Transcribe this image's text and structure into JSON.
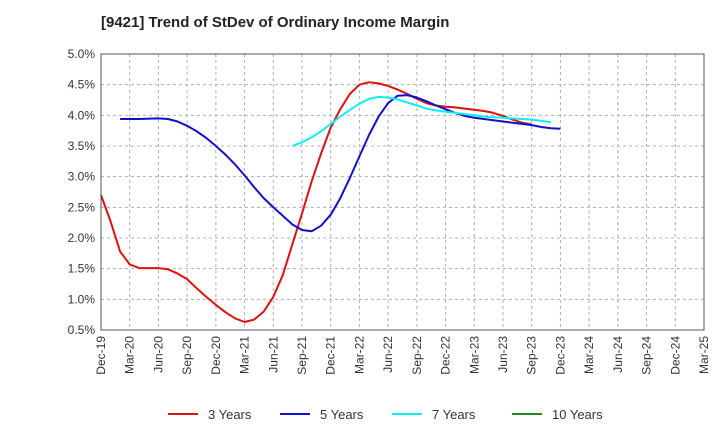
{
  "chart_data": {
    "type": "line",
    "title": "[9421]  Trend of StDev of Ordinary Income Margin",
    "xlabel": "",
    "ylabel": "",
    "ylim": [
      0.5,
      5.0
    ],
    "yticks": [
      "0.5%",
      "1.0%",
      "1.5%",
      "2.0%",
      "2.5%",
      "3.0%",
      "3.5%",
      "4.0%",
      "4.5%",
      "5.0%"
    ],
    "xticks": [
      "Dec-19",
      "Mar-20",
      "Jun-20",
      "Sep-20",
      "Dec-20",
      "Mar-21",
      "Jun-21",
      "Sep-21",
      "Dec-21",
      "Mar-22",
      "Jun-22",
      "Sep-22",
      "Dec-22",
      "Mar-23",
      "Jun-23",
      "Sep-23",
      "Dec-23",
      "Mar-24",
      "Jun-24",
      "Sep-24",
      "Dec-24",
      "Mar-25"
    ],
    "grid": true,
    "legend_position": "bottom",
    "series": [
      {
        "name": "3 Years",
        "color": "#dd1111",
        "points": [
          [
            0,
            2.7
          ],
          [
            1,
            2.27
          ],
          [
            2,
            1.78
          ],
          [
            3,
            1.57
          ],
          [
            4,
            1.51
          ],
          [
            5,
            1.51
          ],
          [
            6,
            1.51
          ],
          [
            7,
            1.49
          ],
          [
            8,
            1.42
          ],
          [
            9,
            1.33
          ],
          [
            10,
            1.18
          ],
          [
            11,
            1.04
          ],
          [
            12,
            0.91
          ],
          [
            13,
            0.79
          ],
          [
            14,
            0.69
          ],
          [
            15,
            0.63
          ],
          [
            16,
            0.67
          ],
          [
            17,
            0.8
          ],
          [
            18,
            1.04
          ],
          [
            19,
            1.4
          ],
          [
            20,
            1.9
          ],
          [
            21,
            2.4
          ],
          [
            22,
            2.92
          ],
          [
            23,
            3.38
          ],
          [
            24,
            3.8
          ],
          [
            25,
            4.1
          ],
          [
            26,
            4.35
          ],
          [
            27,
            4.5
          ],
          [
            28,
            4.54
          ],
          [
            29,
            4.52
          ],
          [
            30,
            4.48
          ],
          [
            31,
            4.42
          ],
          [
            32,
            4.35
          ],
          [
            33,
            4.27
          ],
          [
            34,
            4.2
          ],
          [
            35,
            4.16
          ],
          [
            36,
            4.14
          ],
          [
            37,
            4.13
          ],
          [
            38,
            4.11
          ],
          [
            39,
            4.09
          ],
          [
            40,
            4.07
          ],
          [
            41,
            4.04
          ],
          [
            42,
            3.99
          ],
          [
            43,
            3.93
          ],
          [
            44,
            3.88
          ],
          [
            45,
            3.85
          ]
        ]
      },
      {
        "name": "5 Years",
        "color": "#1111cc",
        "points": [
          [
            2,
            3.94
          ],
          [
            4,
            3.94
          ],
          [
            6,
            3.95
          ],
          [
            7,
            3.94
          ],
          [
            8,
            3.9
          ],
          [
            9,
            3.83
          ],
          [
            10,
            3.74
          ],
          [
            11,
            3.63
          ],
          [
            12,
            3.5
          ],
          [
            13,
            3.36
          ],
          [
            14,
            3.2
          ],
          [
            15,
            3.02
          ],
          [
            16,
            2.83
          ],
          [
            17,
            2.65
          ],
          [
            18,
            2.5
          ],
          [
            19,
            2.36
          ],
          [
            20,
            2.22
          ],
          [
            21,
            2.13
          ],
          [
            22,
            2.11
          ],
          [
            23,
            2.2
          ],
          [
            24,
            2.38
          ],
          [
            25,
            2.65
          ],
          [
            26,
            2.98
          ],
          [
            27,
            3.33
          ],
          [
            28,
            3.68
          ],
          [
            29,
            3.98
          ],
          [
            30,
            4.2
          ],
          [
            31,
            4.32
          ],
          [
            32,
            4.33
          ],
          [
            33,
            4.29
          ],
          [
            34,
            4.23
          ],
          [
            35,
            4.16
          ],
          [
            36,
            4.1
          ],
          [
            37,
            4.04
          ],
          [
            38,
            3.99
          ],
          [
            39,
            3.96
          ],
          [
            40,
            3.94
          ],
          [
            41,
            3.92
          ],
          [
            42,
            3.9
          ],
          [
            43,
            3.88
          ],
          [
            44,
            3.86
          ],
          [
            45,
            3.84
          ],
          [
            46,
            3.81
          ],
          [
            47,
            3.79
          ],
          [
            48,
            3.78
          ]
        ]
      },
      {
        "name": "7 Years",
        "color": "#11eeee",
        "points": [
          [
            20,
            3.5
          ],
          [
            21,
            3.56
          ],
          [
            22,
            3.64
          ],
          [
            23,
            3.74
          ],
          [
            24,
            3.86
          ],
          [
            25,
            3.98
          ],
          [
            26,
            4.09
          ],
          [
            27,
            4.19
          ],
          [
            28,
            4.27
          ],
          [
            29,
            4.3
          ],
          [
            30,
            4.29
          ],
          [
            31,
            4.26
          ],
          [
            32,
            4.21
          ],
          [
            33,
            4.16
          ],
          [
            34,
            4.11
          ],
          [
            35,
            4.08
          ],
          [
            36,
            4.06
          ],
          [
            37,
            4.04
          ],
          [
            38,
            4.02
          ],
          [
            39,
            4.0
          ],
          [
            40,
            3.98
          ],
          [
            41,
            3.97
          ],
          [
            42,
            3.96
          ],
          [
            43,
            3.95
          ],
          [
            44,
            3.94
          ],
          [
            45,
            3.93
          ],
          [
            46,
            3.91
          ],
          [
            47,
            3.89
          ]
        ]
      },
      {
        "name": "10 Years",
        "color": "#228822",
        "points": []
      }
    ]
  }
}
